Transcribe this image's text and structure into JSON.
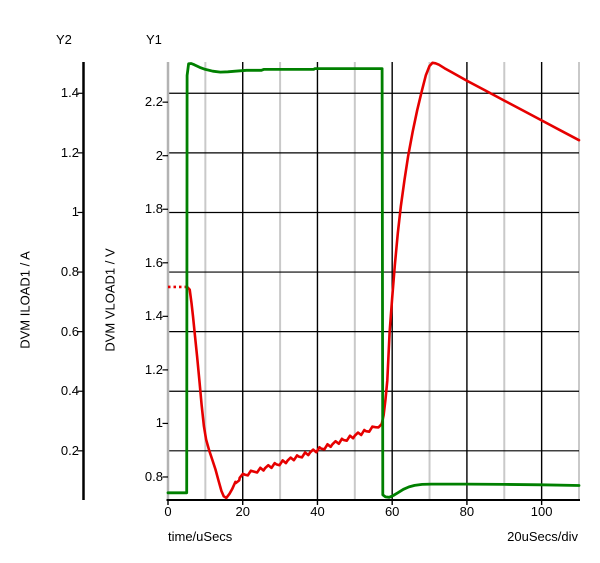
{
  "labels": {
    "y2_axis_name": "Y2",
    "y1_axis_name": "Y1"
  },
  "chart_data": {
    "type": "line",
    "title": "",
    "x_axis": {
      "label": "time/uSecs",
      "per_div": "20uSecs/div",
      "range": [
        0,
        110
      ],
      "major_ticks": [
        0,
        20,
        40,
        60,
        80,
        100
      ],
      "minor_ticks": [
        10,
        30,
        50,
        70,
        90,
        110
      ],
      "grid": "major black, minor gray"
    },
    "y1_axis": {
      "label": "DVM VLOAD1 / V",
      "range": [
        0.714,
        2.35
      ],
      "ticks": [
        0.8,
        1,
        1.2,
        1.4,
        1.6,
        1.8,
        2,
        2.2
      ]
    },
    "y2_axis": {
      "label": "DVM ILOAD1 / A",
      "range": [
        0.035,
        1.505
      ],
      "ticks": [
        0.2,
        0.4,
        0.6,
        0.8,
        1,
        1.2,
        1.4
      ],
      "grid_aligned": true
    },
    "colors": {
      "vload_trace": "#e60000",
      "iload_trace": "#008000",
      "major_grid": "#000000",
      "minor_grid": "#c9c9c9",
      "y1_axis_line": "#b3b3b3",
      "y2_axis_line": "#000000",
      "text": "#000000"
    },
    "series": [
      {
        "name": "DVM VLOAD1",
        "axis": "y1",
        "color": "#e60000",
        "initial_segment": {
          "style": "dotted",
          "points": [
            [
              0,
              1.51
            ],
            [
              5.1,
              1.51
            ]
          ]
        },
        "points": [
          [
            5.1,
            1.51
          ],
          [
            5.8,
            1.5
          ],
          [
            6.3,
            1.45
          ],
          [
            6.7,
            1.4
          ],
          [
            7.2,
            1.33
          ],
          [
            7.8,
            1.25
          ],
          [
            8.4,
            1.16
          ],
          [
            9.0,
            1.07
          ],
          [
            9.6,
            0.99
          ],
          [
            10.2,
            0.94
          ],
          [
            11.0,
            0.9
          ],
          [
            11.9,
            0.862
          ],
          [
            12.7,
            0.828
          ],
          [
            13.5,
            0.788
          ],
          [
            14.3,
            0.748
          ],
          [
            14.9,
            0.728
          ],
          [
            15.6,
            0.722
          ],
          [
            16.4,
            0.736
          ],
          [
            17.2,
            0.756
          ],
          [
            18.2,
            0.778
          ],
          [
            19.2,
            0.797
          ],
          [
            20.5,
            0.809
          ],
          [
            23,
            0.82
          ],
          [
            26,
            0.833
          ],
          [
            29,
            0.847
          ],
          [
            32,
            0.861
          ],
          [
            35,
            0.876
          ],
          [
            38,
            0.891
          ],
          [
            41,
            0.906
          ],
          [
            44,
            0.922
          ],
          [
            47,
            0.938
          ],
          [
            50,
            0.954
          ],
          [
            53,
            0.971
          ],
          [
            55.5,
            0.986
          ],
          [
            57.2,
            0.998
          ],
          [
            57.7,
            1.03
          ],
          [
            58.2,
            1.09
          ],
          [
            58.7,
            1.16
          ],
          [
            59.3,
            1.34
          ],
          [
            60.0,
            1.47
          ],
          [
            60.7,
            1.59
          ],
          [
            61.5,
            1.71
          ],
          [
            62.3,
            1.81
          ],
          [
            63.3,
            1.91
          ],
          [
            64.3,
            2.0
          ],
          [
            65.5,
            2.09
          ],
          [
            66.7,
            2.17
          ],
          [
            67.9,
            2.24
          ],
          [
            69.0,
            2.3
          ],
          [
            70.0,
            2.335
          ],
          [
            70.8,
            2.347
          ],
          [
            71.6,
            2.345
          ],
          [
            72.5,
            2.34
          ],
          [
            74,
            2.327
          ],
          [
            76,
            2.311
          ],
          [
            80,
            2.28
          ],
          [
            85,
            2.243
          ],
          [
            90,
            2.206
          ],
          [
            95,
            2.169
          ],
          [
            100,
            2.132
          ],
          [
            105,
            2.095
          ],
          [
            110,
            2.058
          ]
        ],
        "ripple": {
          "t_start": 15.6,
          "t_end": 57.2,
          "amplitude": 0.007,
          "period": 1.7
        }
      },
      {
        "name": "DVM ILOAD1",
        "axis": "y2",
        "color": "#008000",
        "points": [
          [
            0,
            0.059
          ],
          [
            5.0,
            0.059
          ],
          [
            5.1,
            1.46
          ],
          [
            5.5,
            1.499
          ],
          [
            6.2,
            1.5
          ],
          [
            7.0,
            1.496
          ],
          [
            8.5,
            1.487
          ],
          [
            10,
            1.48
          ],
          [
            12,
            1.474
          ],
          [
            14,
            1.471
          ],
          [
            16,
            1.472
          ],
          [
            18,
            1.474
          ],
          [
            21,
            1.477
          ],
          [
            25,
            1.477
          ],
          [
            25.6,
            1.48
          ],
          [
            39,
            1.48
          ],
          [
            39.3,
            1.483
          ],
          [
            50,
            1.483
          ],
          [
            57.3,
            1.483
          ],
          [
            57.4,
            0.7
          ],
          [
            57.5,
            0.052
          ],
          [
            58.2,
            0.0455
          ],
          [
            59.2,
            0.044
          ],
          [
            60.3,
            0.05
          ],
          [
            61.5,
            0.059
          ],
          [
            63.0,
            0.071
          ],
          [
            64.5,
            0.079
          ],
          [
            66.0,
            0.084
          ],
          [
            68.0,
            0.0875
          ],
          [
            70.5,
            0.0885
          ],
          [
            80,
            0.0885
          ],
          [
            90,
            0.0875
          ],
          [
            100,
            0.086
          ],
          [
            110,
            0.0835
          ]
        ]
      }
    ]
  }
}
